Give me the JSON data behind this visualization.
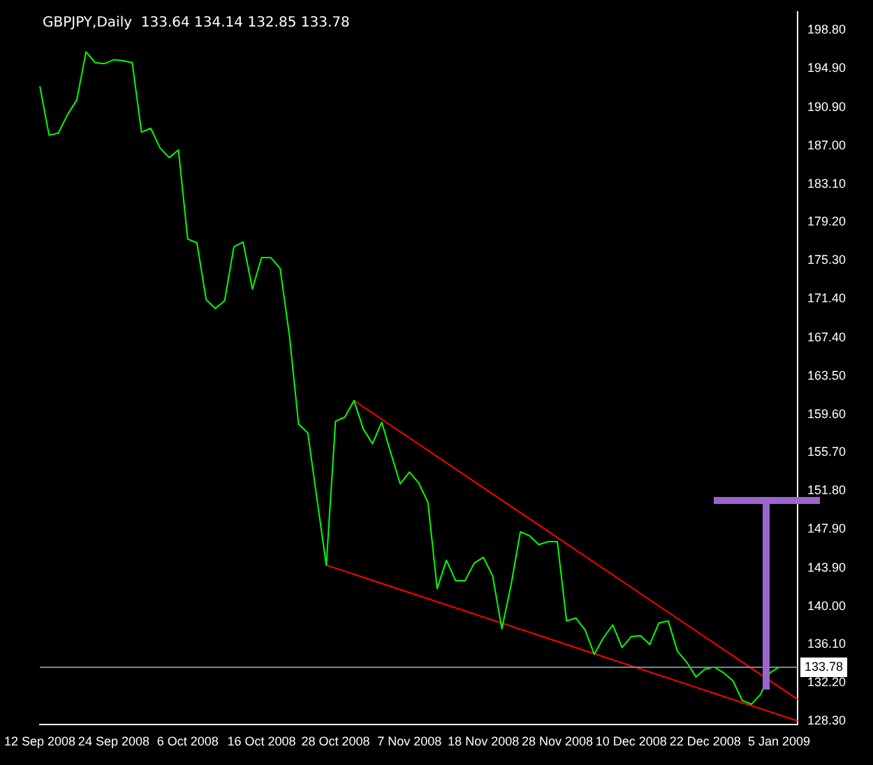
{
  "chart_data": {
    "type": "line",
    "title": "GBPJPY,Daily  133.64 134.14 132.85 133.78",
    "categories": [
      "12 Sep 2008",
      null,
      null,
      null,
      null,
      null,
      null,
      null,
      "24 Sep 2008",
      null,
      null,
      null,
      null,
      null,
      null,
      null,
      "6 Oct 2008",
      null,
      null,
      null,
      null,
      null,
      null,
      null,
      "16 Oct 2008",
      null,
      null,
      null,
      null,
      null,
      null,
      null,
      "28 Oct 2008",
      null,
      null,
      null,
      null,
      null,
      null,
      null,
      "7 Nov 2008",
      null,
      null,
      null,
      null,
      null,
      null,
      null,
      "18 Nov 2008",
      null,
      null,
      null,
      null,
      null,
      null,
      null,
      "28 Nov 2008",
      null,
      null,
      null,
      null,
      null,
      null,
      null,
      "10 Dec 2008",
      null,
      null,
      null,
      null,
      null,
      null,
      null,
      "22 Dec 2008",
      null,
      null,
      null,
      null,
      null,
      null,
      null,
      "5 Jan 2009",
      null,
      null
    ],
    "series": [
      {
        "type": "line",
        "color": "#00ff00",
        "values": [
          193.1,
          188.1,
          188.3,
          190.2,
          191.7,
          196.6,
          195.5,
          195.4,
          195.8,
          195.7,
          195.5,
          188.4,
          188.8,
          186.8,
          185.8,
          186.6,
          177.5,
          177.1,
          171.3,
          170.4,
          171.2,
          176.7,
          177.2,
          172.4,
          175.6,
          175.6,
          174.5,
          167.7,
          158.6,
          157.7,
          150.9,
          144.2,
          158.9,
          159.3,
          161.0,
          158.1,
          156.6,
          158.8,
          155.6,
          152.5,
          153.7,
          152.6,
          150.6,
          141.8,
          144.7,
          142.6,
          142.6,
          144.4,
          145.0,
          143.1,
          137.7,
          142.2,
          147.6,
          147.2,
          146.3,
          146.6,
          146.6,
          138.5,
          138.8,
          137.6,
          135.1,
          136.8,
          138.1,
          135.8,
          136.9,
          137.0,
          136.1,
          138.3,
          138.5,
          135.4,
          134.3,
          132.8,
          133.6,
          133.8,
          133.2,
          132.4,
          130.4,
          130.0,
          131.0,
          133.2,
          133.8,
          null,
          null
        ]
      },
      {
        "type": "line",
        "color": "#ff0000",
        "values": [
          null,
          null,
          null,
          null,
          null,
          null,
          null,
          null,
          null,
          null,
          null,
          null,
          null,
          null,
          null,
          null,
          null,
          null,
          null,
          null,
          null,
          null,
          null,
          null,
          null,
          null,
          null,
          null,
          null,
          null,
          null,
          null,
          null,
          null,
          161.0,
          null,
          null,
          null,
          null,
          null,
          null,
          null,
          null,
          null,
          null,
          null,
          null,
          null,
          null,
          null,
          null,
          null,
          null,
          null,
          null,
          null,
          null,
          null,
          null,
          null,
          null,
          null,
          null,
          null,
          null,
          null,
          null,
          null,
          null,
          null,
          null,
          null,
          null,
          null,
          null,
          null,
          null,
          null,
          null,
          null,
          null,
          null,
          130.5
        ]
      },
      {
        "type": "line",
        "color": "#ff0000",
        "values": [
          null,
          null,
          null,
          null,
          null,
          null,
          null,
          null,
          null,
          null,
          null,
          null,
          null,
          null,
          null,
          null,
          null,
          null,
          null,
          null,
          null,
          null,
          null,
          null,
          null,
          null,
          null,
          null,
          null,
          null,
          null,
          144.2,
          null,
          null,
          null,
          null,
          null,
          null,
          null,
          null,
          null,
          null,
          null,
          null,
          null,
          null,
          null,
          null,
          null,
          null,
          null,
          null,
          null,
          null,
          null,
          null,
          null,
          null,
          null,
          null,
          null,
          null,
          null,
          null,
          null,
          null,
          null,
          null,
          null,
          null,
          null,
          null,
          null,
          null,
          null,
          null,
          null,
          null,
          null,
          null,
          null,
          null,
          128.3
        ]
      }
    ],
    "ylim": [
      127.9,
      200.7
    ],
    "yticks": [
      {
        "value": 198.8,
        "label": "198.80"
      },
      {
        "value": 194.9,
        "label": "194.90"
      },
      {
        "value": 190.9,
        "label": "190.90"
      },
      {
        "value": 187.0,
        "label": "187.00"
      },
      {
        "value": 183.1,
        "label": "183.10"
      },
      {
        "value": 179.2,
        "label": "179.20"
      },
      {
        "value": 175.3,
        "label": "175.30"
      },
      {
        "value": 171.4,
        "label": "171.40"
      },
      {
        "value": 167.4,
        "label": "167.40"
      },
      {
        "value": 163.5,
        "label": "163.50"
      },
      {
        "value": 159.6,
        "label": "159.60"
      },
      {
        "value": 155.7,
        "label": "155.70"
      },
      {
        "value": 151.8,
        "label": "151.80"
      },
      {
        "value": 147.9,
        "label": "147.90"
      },
      {
        "value": 143.9,
        "label": "143.90"
      },
      {
        "value": 140.0,
        "label": "140.00"
      },
      {
        "value": 136.1,
        "label": "136.10"
      },
      {
        "value": 132.2,
        "label": "132.20"
      },
      {
        "value": 128.3,
        "label": "128.30"
      }
    ],
    "ref_lines": [
      {
        "axis": "y",
        "value": 133.78,
        "label": "133.78",
        "color": "#778899"
      }
    ],
    "grid": false,
    "legend": false,
    "marker": "none",
    "line_style": "solid"
  }
}
